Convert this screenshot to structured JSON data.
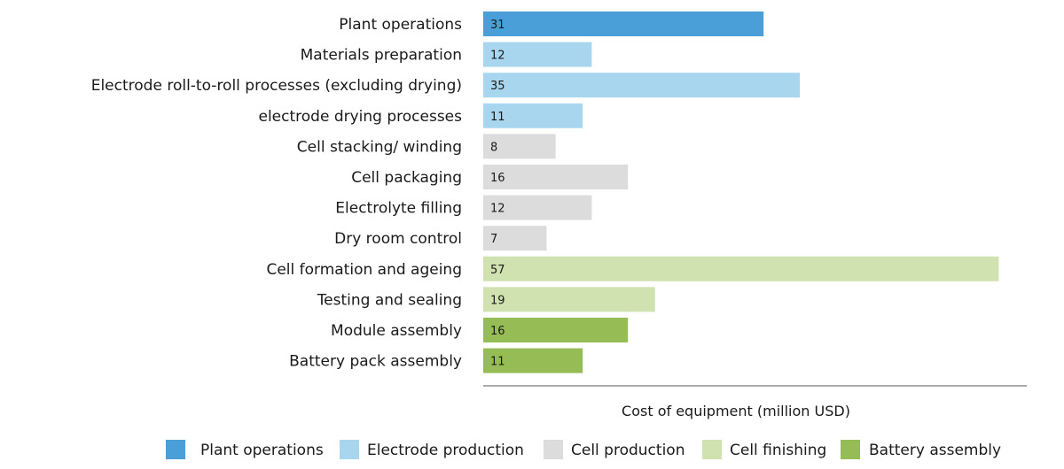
{
  "chart_data": {
    "type": "bar",
    "orientation": "horizontal",
    "categories": [
      "Plant operations",
      "Materials preparation",
      "Electrode roll-to-roll processes (excluding drying)",
      "electrode drying processes",
      "Cell stacking/ winding",
      "Cell packaging",
      "Electrolyte filling",
      "Dry room control",
      "Cell formation and ageing",
      "Testing and sealing",
      "Module assembly",
      "Battery pack assembly"
    ],
    "values": [
      31,
      12,
      35,
      11,
      8,
      16,
      12,
      7,
      57,
      19,
      16,
      11
    ],
    "groups": [
      "Plant operations",
      "Electrode production",
      "Electrode production",
      "Electrode production",
      "Cell production",
      "Cell production",
      "Cell production",
      "Cell production",
      "Cell finishing",
      "Cell finishing",
      "Battery assembly",
      "Battery assembly"
    ],
    "legend": [
      {
        "name": "Plant operations",
        "color": "#4a9fd8"
      },
      {
        "name": "Electrode production",
        "color": "#a9d6ef"
      },
      {
        "name": "Cell production",
        "color": "#dcdcdc"
      },
      {
        "name": "Cell finishing",
        "color": "#d0e2b0"
      },
      {
        "name": "Battery assembly",
        "color": "#96bd55"
      }
    ],
    "legend_position": "bottom",
    "xlabel": "Cost of equipment (million USD)",
    "ylabel": "",
    "xlim": [
      0,
      60
    ],
    "grid": false
  }
}
